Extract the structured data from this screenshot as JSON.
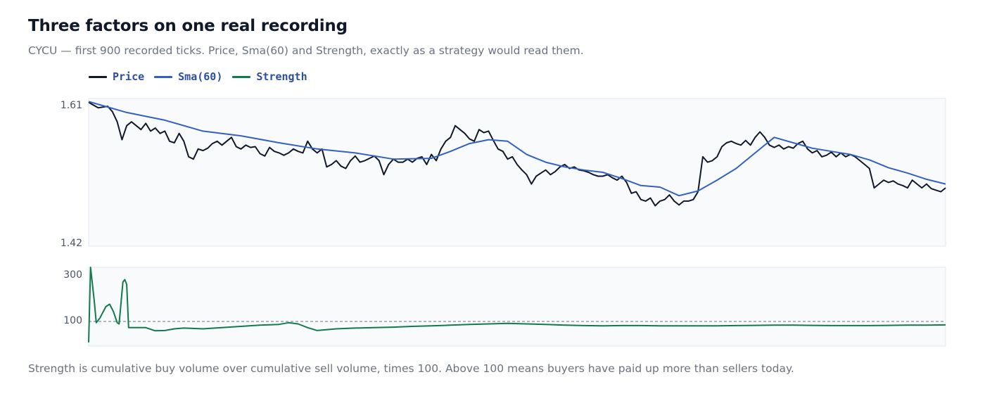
{
  "title": "Three factors on one real recording",
  "subtitle": "CYCU — first 900 recorded ticks. Price, Sma(60) and Strength, exactly as a strategy would read them.",
  "footnote": "Strength is cumulative buy volume over cumulative sell volume, times 100. Above 100 means buyers have paid up more than sellers today.",
  "legend": [
    {
      "label": "Price",
      "color": "#111827"
    },
    {
      "label": "Sma(60)",
      "color": "#3461c1"
    },
    {
      "label": "Strength",
      "color": "#127a4f"
    }
  ],
  "chart_data": [
    {
      "type": "line",
      "panel": "price",
      "ylim": [
        1.42,
        1.61
      ],
      "yticks": [
        "1.61",
        "1.42"
      ],
      "grid": false,
      "legend": "top-left",
      "series": [
        {
          "name": "Price",
          "color": "#111827",
          "points": [
            [
              0,
              1.605
            ],
            [
              10,
              1.598
            ],
            [
              20,
              1.6
            ],
            [
              25,
              1.593
            ],
            [
              30,
              1.58
            ],
            [
              35,
              1.557
            ],
            [
              40,
              1.575
            ],
            [
              45,
              1.58
            ],
            [
              50,
              1.575
            ],
            [
              55,
              1.57
            ],
            [
              60,
              1.578
            ],
            [
              65,
              1.568
            ],
            [
              70,
              1.572
            ],
            [
              75,
              1.565
            ],
            [
              80,
              1.568
            ],
            [
              85,
              1.555
            ],
            [
              90,
              1.553
            ],
            [
              95,
              1.565
            ],
            [
              100,
              1.555
            ],
            [
              105,
              1.535
            ],
            [
              110,
              1.532
            ],
            [
              115,
              1.545
            ],
            [
              120,
              1.543
            ],
            [
              125,
              1.546
            ],
            [
              130,
              1.552
            ],
            [
              135,
              1.555
            ],
            [
              140,
              1.55
            ],
            [
              145,
              1.555
            ],
            [
              150,
              1.56
            ],
            [
              155,
              1.548
            ],
            [
              160,
              1.545
            ],
            [
              165,
              1.55
            ],
            [
              170,
              1.547
            ],
            [
              175,
              1.548
            ],
            [
              180,
              1.539
            ],
            [
              185,
              1.536
            ],
            [
              190,
              1.547
            ],
            [
              195,
              1.542
            ],
            [
              200,
              1.54
            ],
            [
              205,
              1.537
            ],
            [
              210,
              1.54
            ],
            [
              215,
              1.545
            ],
            [
              220,
              1.542
            ],
            [
              225,
              1.54
            ],
            [
              230,
              1.555
            ],
            [
              235,
              1.545
            ],
            [
              240,
              1.54
            ],
            [
              245,
              1.545
            ],
            [
              250,
              1.522
            ],
            [
              255,
              1.525
            ],
            [
              260,
              1.53
            ],
            [
              265,
              1.523
            ],
            [
              270,
              1.52
            ],
            [
              275,
              1.53
            ],
            [
              280,
              1.536
            ],
            [
              285,
              1.528
            ],
            [
              290,
              1.53
            ],
            [
              295,
              1.533
            ],
            [
              300,
              1.536
            ],
            [
              305,
              1.53
            ],
            [
              310,
              1.512
            ],
            [
              315,
              1.525
            ],
            [
              320,
              1.532
            ],
            [
              325,
              1.528
            ],
            [
              330,
              1.528
            ],
            [
              335,
              1.532
            ],
            [
              340,
              1.528
            ],
            [
              345,
              1.533
            ],
            [
              350,
              1.535
            ],
            [
              355,
              1.525
            ],
            [
              360,
              1.538
            ],
            [
              365,
              1.53
            ],
            [
              370,
              1.545
            ],
            [
              375,
              1.555
            ],
            [
              380,
              1.56
            ],
            [
              385,
              1.575
            ],
            [
              390,
              1.57
            ],
            [
              395,
              1.565
            ],
            [
              400,
              1.558
            ],
            [
              405,
              1.555
            ],
            [
              410,
              1.57
            ],
            [
              415,
              1.566
            ],
            [
              420,
              1.568
            ],
            [
              425,
              1.556
            ],
            [
              430,
              1.545
            ],
            [
              435,
              1.542
            ],
            [
              440,
              1.532
            ],
            [
              445,
              1.535
            ],
            [
              450,
              1.525
            ],
            [
              455,
              1.518
            ],
            [
              460,
              1.512
            ],
            [
              465,
              1.5
            ],
            [
              470,
              1.51
            ],
            [
              475,
              1.514
            ],
            [
              480,
              1.518
            ],
            [
              485,
              1.512
            ],
            [
              490,
              1.516
            ],
            [
              495,
              1.522
            ],
            [
              500,
              1.525
            ],
            [
              505,
              1.52
            ],
            [
              510,
              1.522
            ],
            [
              515,
              1.518
            ],
            [
              520,
              1.517
            ],
            [
              525,
              1.515
            ],
            [
              530,
              1.512
            ],
            [
              535,
              1.51
            ],
            [
              540,
              1.51
            ],
            [
              545,
              1.512
            ],
            [
              550,
              1.508
            ],
            [
              555,
              1.505
            ],
            [
              560,
              1.51
            ],
            [
              565,
              1.502
            ],
            [
              570,
              1.488
            ],
            [
              575,
              1.49
            ],
            [
              580,
              1.48
            ],
            [
              585,
              1.478
            ],
            [
              590,
              1.482
            ],
            [
              595,
              1.472
            ],
            [
              600,
              1.478
            ],
            [
              605,
              1.48
            ],
            [
              610,
              1.486
            ],
            [
              615,
              1.478
            ],
            [
              620,
              1.473
            ],
            [
              625,
              1.478
            ],
            [
              630,
              1.478
            ],
            [
              635,
              1.48
            ],
            [
              640,
              1.49
            ],
            [
              645,
              1.535
            ],
            [
              650,
              1.528
            ],
            [
              655,
              1.53
            ],
            [
              660,
              1.535
            ],
            [
              665,
              1.548
            ],
            [
              670,
              1.553
            ],
            [
              675,
              1.555
            ],
            [
              680,
              1.552
            ],
            [
              685,
              1.55
            ],
            [
              690,
              1.556
            ],
            [
              695,
              1.55
            ],
            [
              700,
              1.56
            ],
            [
              705,
              1.567
            ],
            [
              710,
              1.56
            ],
            [
              715,
              1.55
            ],
            [
              720,
              1.547
            ],
            [
              725,
              1.55
            ],
            [
              730,
              1.545
            ],
            [
              735,
              1.548
            ],
            [
              740,
              1.546
            ],
            [
              745,
              1.552
            ],
            [
              750,
              1.555
            ],
            [
              755,
              1.545
            ],
            [
              760,
              1.54
            ],
            [
              765,
              1.543
            ],
            [
              770,
              1.535
            ],
            [
              775,
              1.537
            ],
            [
              780,
              1.541
            ],
            [
              785,
              1.535
            ],
            [
              790,
              1.54
            ],
            [
              795,
              1.535
            ],
            [
              800,
              1.538
            ],
            [
              805,
              1.535
            ],
            [
              810,
              1.53
            ],
            [
              815,
              1.525
            ],
            [
              820,
              1.52
            ],
            [
              825,
              1.495
            ],
            [
              830,
              1.5
            ],
            [
              835,
              1.505
            ],
            [
              840,
              1.502
            ],
            [
              845,
              1.504
            ],
            [
              850,
              1.5
            ],
            [
              855,
              1.498
            ],
            [
              860,
              1.495
            ],
            [
              865,
              1.505
            ],
            [
              870,
              1.5
            ],
            [
              875,
              1.495
            ],
            [
              880,
              1.5
            ],
            [
              885,
              1.494
            ],
            [
              890,
              1.492
            ],
            [
              895,
              1.49
            ],
            [
              900,
              1.495
            ]
          ]
        },
        {
          "name": "Sma(60)",
          "color": "#3461c1",
          "points": [
            [
              0,
              1.606
            ],
            [
              40,
              1.592
            ],
            [
              80,
              1.582
            ],
            [
              120,
              1.568
            ],
            [
              160,
              1.562
            ],
            [
              200,
              1.553
            ],
            [
              240,
              1.545
            ],
            [
              280,
              1.54
            ],
            [
              320,
              1.532
            ],
            [
              360,
              1.533
            ],
            [
              380,
              1.542
            ],
            [
              400,
              1.552
            ],
            [
              420,
              1.557
            ],
            [
              440,
              1.555
            ],
            [
              460,
              1.538
            ],
            [
              480,
              1.528
            ],
            [
              500,
              1.522
            ],
            [
              520,
              1.518
            ],
            [
              540,
              1.515
            ],
            [
              560,
              1.507
            ],
            [
              580,
              1.498
            ],
            [
              600,
              1.496
            ],
            [
              620,
              1.485
            ],
            [
              640,
              1.491
            ],
            [
              660,
              1.505
            ],
            [
              680,
              1.52
            ],
            [
              700,
              1.54
            ],
            [
              720,
              1.56
            ],
            [
              740,
              1.553
            ],
            [
              760,
              1.546
            ],
            [
              780,
              1.542
            ],
            [
              800,
              1.538
            ],
            [
              820,
              1.531
            ],
            [
              840,
              1.521
            ],
            [
              860,
              1.514
            ],
            [
              880,
              1.506
            ],
            [
              900,
              1.5
            ]
          ]
        }
      ]
    },
    {
      "type": "line",
      "panel": "strength",
      "ylim": [
        0,
        320
      ],
      "yticks": [
        "300",
        "100"
      ],
      "reference_line": 100,
      "grid": false,
      "series": [
        {
          "name": "Strength",
          "color": "#127a4f",
          "points": [
            [
              0,
              15
            ],
            [
              2,
              320
            ],
            [
              6,
              180
            ],
            [
              8,
              95
            ],
            [
              12,
              115
            ],
            [
              18,
              160
            ],
            [
              22,
              170
            ],
            [
              26,
              140
            ],
            [
              30,
              95
            ],
            [
              32,
              90
            ],
            [
              36,
              260
            ],
            [
              38,
              270
            ],
            [
              40,
              250
            ],
            [
              42,
              75
            ],
            [
              60,
              75
            ],
            [
              70,
              62
            ],
            [
              80,
              63
            ],
            [
              90,
              70
            ],
            [
              100,
              73
            ],
            [
              120,
              70
            ],
            [
              140,
              75
            ],
            [
              160,
              80
            ],
            [
              180,
              85
            ],
            [
              200,
              88
            ],
            [
              210,
              95
            ],
            [
              220,
              90
            ],
            [
              230,
              75
            ],
            [
              240,
              63
            ],
            [
              260,
              70
            ],
            [
              280,
              73
            ],
            [
              300,
              75
            ],
            [
              320,
              77
            ],
            [
              340,
              80
            ],
            [
              360,
              82
            ],
            [
              380,
              85
            ],
            [
              400,
              88
            ],
            [
              420,
              90
            ],
            [
              440,
              92
            ],
            [
              460,
              90
            ],
            [
              480,
              88
            ],
            [
              500,
              85
            ],
            [
              520,
              83
            ],
            [
              540,
              82
            ],
            [
              560,
              83
            ],
            [
              580,
              83
            ],
            [
              600,
              82
            ],
            [
              620,
              82
            ],
            [
              640,
              82
            ],
            [
              660,
              82
            ],
            [
              680,
              83
            ],
            [
              700,
              84
            ],
            [
              720,
              85
            ],
            [
              740,
              85
            ],
            [
              760,
              84
            ],
            [
              780,
              83
            ],
            [
              800,
              83
            ],
            [
              820,
              83
            ],
            [
              840,
              84
            ],
            [
              860,
              85
            ],
            [
              880,
              85
            ],
            [
              900,
              86
            ]
          ]
        }
      ]
    }
  ]
}
